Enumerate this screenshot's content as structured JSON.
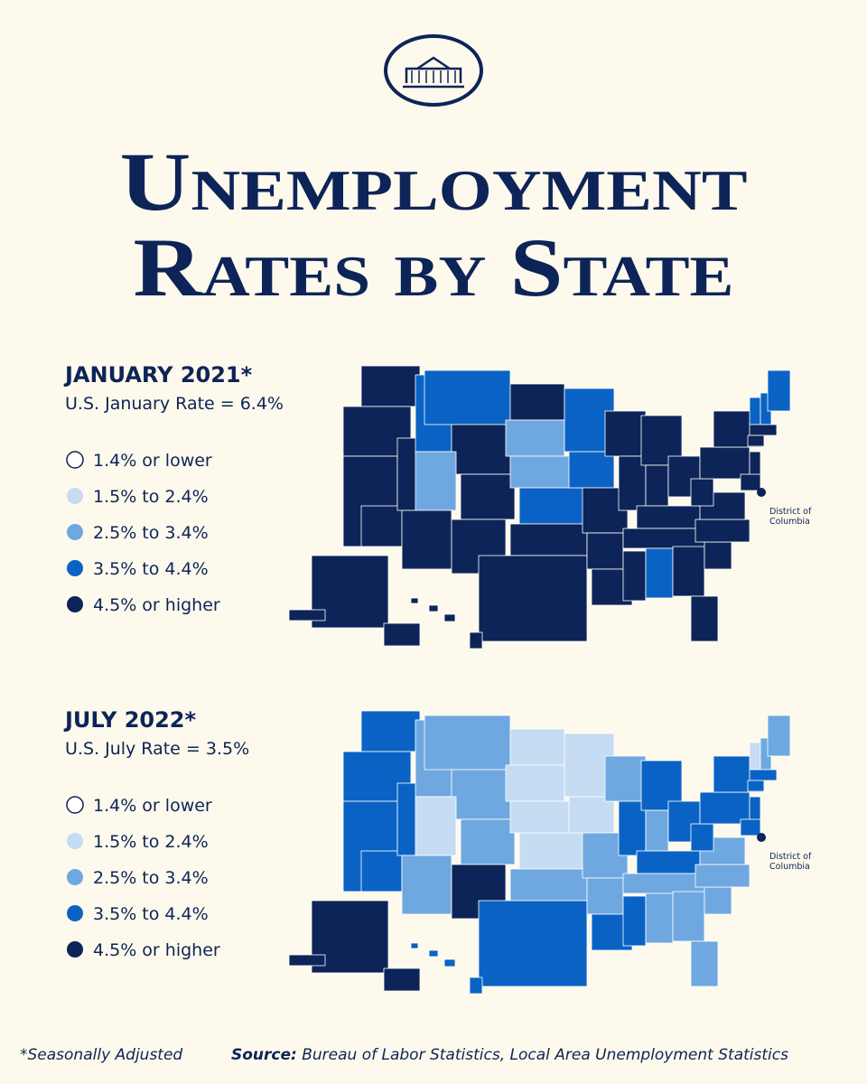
{
  "header": {
    "title_line1": "Unemployment",
    "title_line2": "Rates by State"
  },
  "maps": [
    {
      "title": "JANUARY 2021*",
      "subtitle": "U.S. January Rate = 6.4%",
      "legend": [
        "1.4% or lower",
        "1.5% to 2.4%",
        "2.5% to 3.4%",
        "3.5% to 4.4%",
        "4.5% or higher"
      ],
      "dc_label": [
        "District of",
        "Columbia"
      ]
    },
    {
      "title": "JULY 2022*",
      "subtitle": "U.S. July Rate = 3.5%",
      "legend": [
        "1.4% or lower",
        "1.5% to 2.4%",
        "2.5% to 3.4%",
        "3.5% to 4.4%",
        "4.5% or higher"
      ],
      "dc_label": [
        "District of",
        "Columbia"
      ]
    }
  ],
  "footer": {
    "note": "*Seasonally Adjusted",
    "source_label": "Source:",
    "source": "Bureau of Labor Statistics, Local Area Unemployment Statistics"
  }
}
